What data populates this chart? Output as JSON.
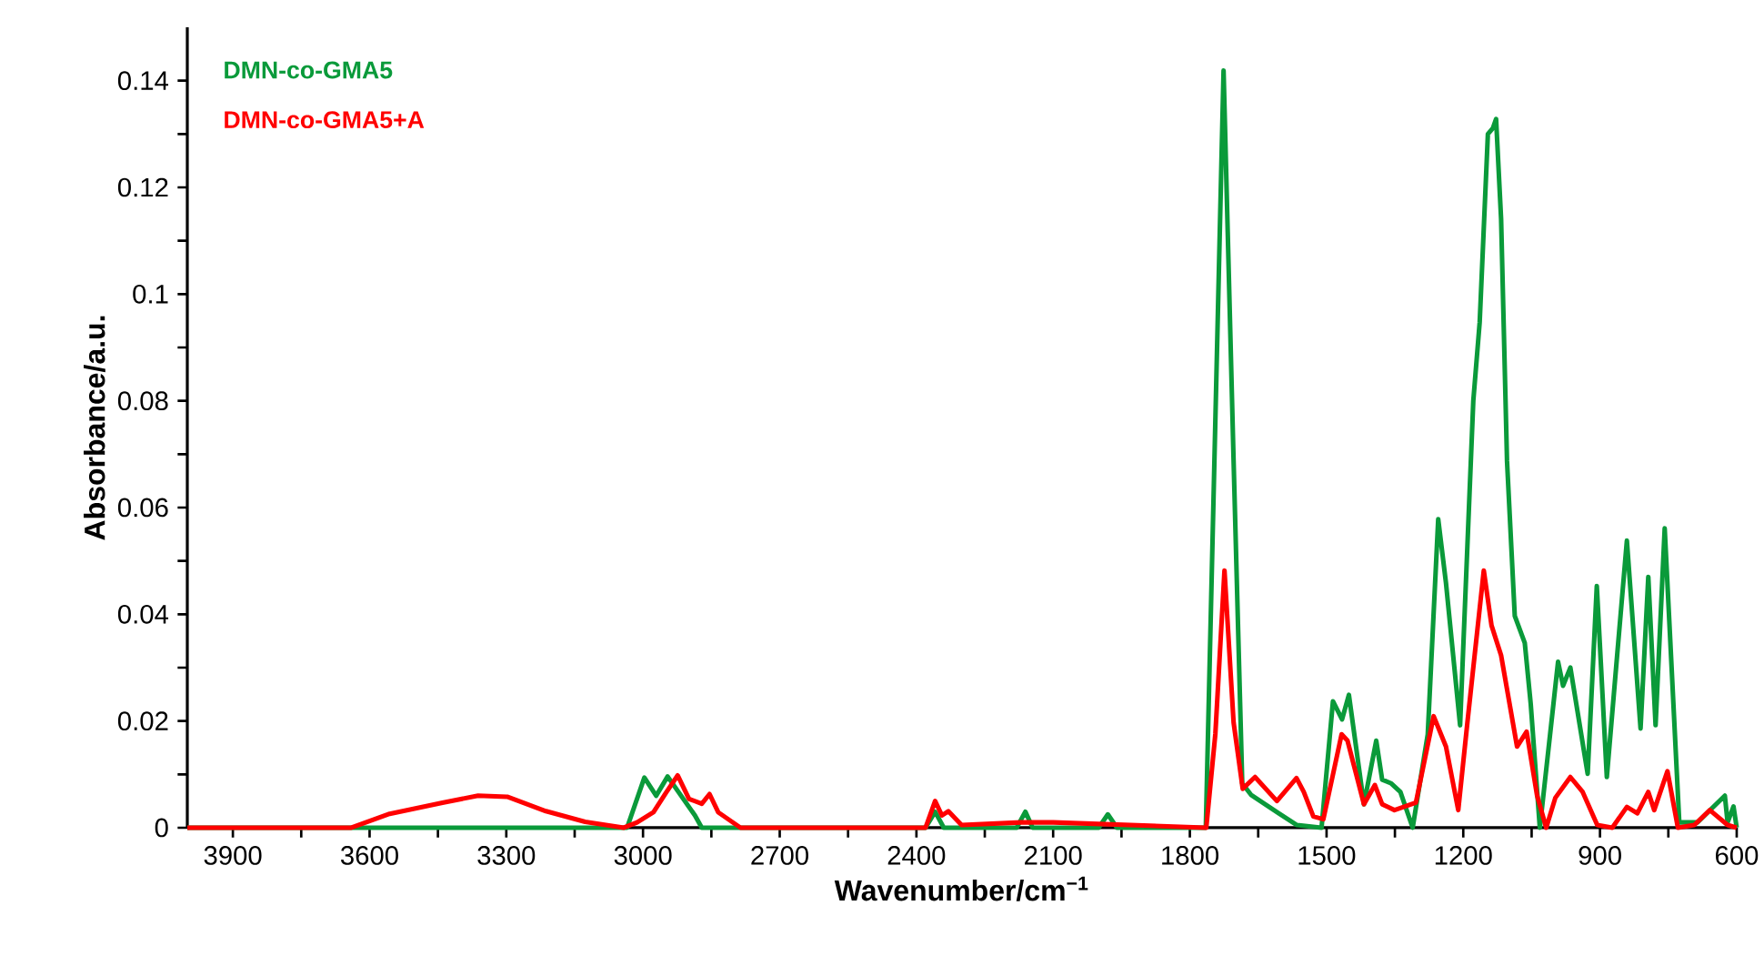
{
  "chart_data": {
    "type": "line",
    "xlabel": "Wavenumber/cm$^{−1}$",
    "ylabel": "Absorbance/a.u.",
    "xlim": [
      4000,
      600
    ],
    "ylim": [
      0,
      0.15
    ],
    "xticks": [
      3900,
      {
        "value": 3750,
        "label": null
      },
      3600,
      {
        "value": 3450,
        "label": null
      },
      3300,
      {
        "value": 3150,
        "label": null
      },
      3000,
      {
        "value": 2850,
        "label": null
      },
      2700,
      {
        "value": 2550,
        "label": null
      },
      2400,
      {
        "value": 2250,
        "label": null
      },
      2100,
      {
        "value": 1950,
        "label": null
      },
      1800,
      {
        "value": 1650,
        "label": null
      },
      1500,
      {
        "value": 1350,
        "label": null
      },
      1200,
      {
        "value": 1050,
        "label": null
      },
      900,
      {
        "value": 750,
        "label": null
      },
      600
    ],
    "yticks": [
      0,
      {
        "value": 0.01,
        "label": null
      },
      0.02,
      {
        "value": 0.03,
        "label": null
      },
      0.04,
      {
        "value": 0.05,
        "label": null
      },
      0.06,
      {
        "value": 0.07,
        "label": null
      },
      0.08,
      {
        "value": 0.09,
        "label": null
      },
      0.1,
      {
        "value": 0.11,
        "label": null
      },
      0.12,
      {
        "value": 0.13,
        "label": null
      },
      0.14
    ],
    "legend": "top left",
    "series": [
      {
        "name": "DMN-co-GMA5",
        "color": "#0a9a3a",
        "x": [
          4000,
          3035,
          2997,
          2971,
          2946,
          2886,
          2871,
          2380,
          2359,
          2340,
          2180,
          2161,
          2145,
          2000,
          1980,
          1960,
          1765,
          1726,
          1704,
          1685,
          1665,
          1605,
          1565,
          1511,
          1486,
          1466,
          1451,
          1418,
          1391,
          1378,
          1358,
          1338,
          1311,
          1278,
          1255,
          1238,
          1207,
          1178,
          1164,
          1146,
          1135,
          1128,
          1117,
          1104,
          1087,
          1065,
          1052,
          1032,
          992,
          981,
          965,
          927,
          907,
          885,
          841,
          811,
          794,
          778,
          758,
          726,
          686,
          626,
          620,
          607,
          600
        ],
        "values": [
          0,
          0,
          0.0094,
          0.006,
          0.0096,
          0.0023,
          0,
          0,
          0.003,
          0,
          0,
          0.003,
          0,
          0,
          0.0025,
          0,
          0,
          0.1419,
          0.0687,
          0.0083,
          0.0061,
          0.0027,
          0.0005,
          0,
          0.0237,
          0.0203,
          0.0249,
          0.0044,
          0.0163,
          0.009,
          0.0083,
          0.0067,
          0,
          0.0175,
          0.0578,
          0.0459,
          0.0192,
          0.08,
          0.0947,
          0.13,
          0.1311,
          0.1328,
          0.1141,
          0.0687,
          0.0397,
          0.0346,
          0.0232,
          0,
          0.0311,
          0.0266,
          0.03,
          0.0101,
          0.0453,
          0.0095,
          0.0538,
          0.0186,
          0.047,
          0.0192,
          0.0561,
          0.001,
          0.001,
          0.006,
          0.001,
          0.004,
          0
        ]
      },
      {
        "name": "DMN-co-GMA5+A",
        "color": "#ff0000",
        "x": [
          4000,
          3640,
          3556,
          3440,
          3362,
          3298,
          3213,
          3127,
          3042,
          3013,
          2977,
          2950,
          2924,
          2899,
          2871,
          2854,
          2835,
          2786,
          2380,
          2359,
          2344,
          2330,
          2301,
          2170,
          2100,
          1764,
          1744,
          1724,
          1704,
          1684,
          1657,
          1609,
          1566,
          1550,
          1529,
          1507,
          1467,
          1454,
          1418,
          1394,
          1378,
          1351,
          1304,
          1265,
          1238,
          1211,
          1191,
          1155,
          1138,
          1117,
          1082,
          1061,
          1038,
          1018,
          998,
          965,
          938,
          906,
          873,
          841,
          818,
          794,
          781,
          752,
          729,
          693,
          659,
          620,
          600
        ],
        "values": [
          0,
          0,
          0.0026,
          0.0047,
          0.006,
          0.0058,
          0.0031,
          0.0011,
          0,
          0.001,
          0.0029,
          0.0065,
          0.0098,
          0.0054,
          0.0045,
          0.0063,
          0.0029,
          0,
          0,
          0.005,
          0.0023,
          0.0031,
          0.0005,
          0.001,
          0.001,
          0,
          0.0176,
          0.0482,
          0.0197,
          0.0073,
          0.0095,
          0.005,
          0.0093,
          0.0067,
          0.0021,
          0.0016,
          0.0175,
          0.0163,
          0.0044,
          0.008,
          0.0044,
          0.0033,
          0.0047,
          0.0209,
          0.0152,
          0.0033,
          0.0197,
          0.0482,
          0.0379,
          0.0323,
          0.0152,
          0.018,
          0.006,
          0,
          0.0056,
          0.0095,
          0.0067,
          0.0005,
          0,
          0.0039,
          0.0027,
          0.0067,
          0.0033,
          0.0106,
          0,
          0.0005,
          0.0033,
          0.0005,
          0
        ]
      }
    ]
  }
}
